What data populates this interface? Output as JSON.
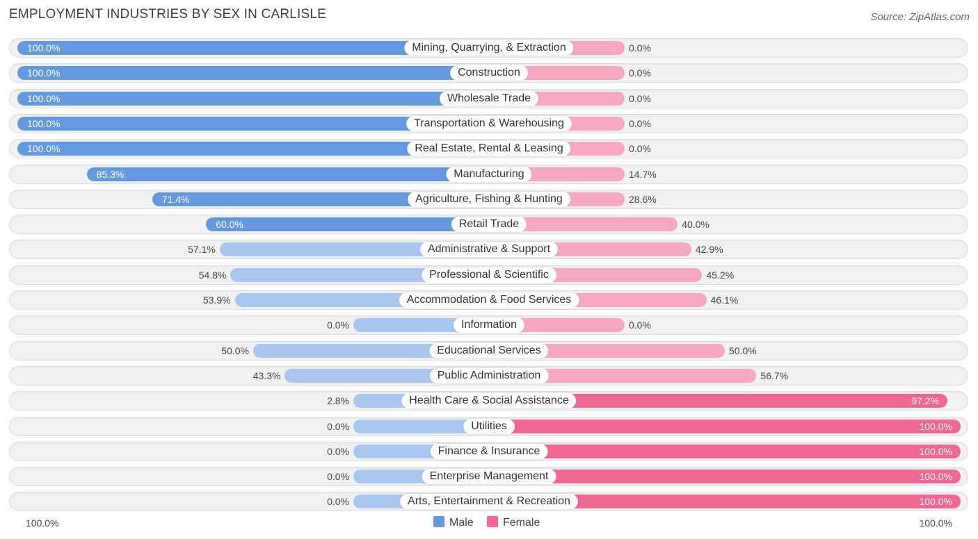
{
  "header": {
    "title": "EMPLOYMENT INDUSTRIES BY SEX IN CARLISLE",
    "source": "Source: ZipAtlas.com"
  },
  "colors": {
    "male_strong": "#6399de",
    "male_light": "#a9c7ee",
    "female_strong": "#f06892",
    "female_light": "#f7a8c1"
  },
  "chart_data": {
    "type": "bar",
    "orientation": "horizontal-diverging",
    "title": "EMPLOYMENT INDUSTRIES BY SEX IN CARLISLE",
    "categories": [
      "Mining, Quarrying, & Extraction",
      "Construction",
      "Wholesale Trade",
      "Transportation & Warehousing",
      "Real Estate, Rental & Leasing",
      "Manufacturing",
      "Agriculture, Fishing & Hunting",
      "Retail Trade",
      "Administrative & Support",
      "Professional & Scientific",
      "Accommodation & Food Services",
      "Information",
      "Educational Services",
      "Public Administration",
      "Health Care & Social Assistance",
      "Utilities",
      "Finance & Insurance",
      "Enterprise Management",
      "Arts, Entertainment & Recreation"
    ],
    "series": [
      {
        "name": "Male",
        "values": [
          100.0,
          100.0,
          100.0,
          100.0,
          100.0,
          85.3,
          71.4,
          60.0,
          57.1,
          54.8,
          53.9,
          0.0,
          50.0,
          43.3,
          2.8,
          0.0,
          0.0,
          0.0,
          0.0
        ],
        "labels": [
          "100.0%",
          "100.0%",
          "100.0%",
          "100.0%",
          "100.0%",
          "85.3%",
          "71.4%",
          "60.0%",
          "57.1%",
          "54.8%",
          "53.9%",
          "0.0%",
          "50.0%",
          "43.3%",
          "2.8%",
          "0.0%",
          "0.0%",
          "0.0%",
          "0.0%"
        ]
      },
      {
        "name": "Female",
        "values": [
          0.0,
          0.0,
          0.0,
          0.0,
          0.0,
          14.7,
          28.6,
          40.0,
          42.9,
          45.2,
          46.1,
          0.0,
          50.0,
          56.7,
          97.2,
          100.0,
          100.0,
          100.0,
          100.0
        ],
        "labels": [
          "0.0%",
          "0.0%",
          "0.0%",
          "0.0%",
          "0.0%",
          "14.7%",
          "28.6%",
          "40.0%",
          "42.9%",
          "45.2%",
          "46.1%",
          "0.0%",
          "50.0%",
          "56.7%",
          "97.2%",
          "100.0%",
          "100.0%",
          "100.0%",
          "100.0%"
        ]
      }
    ],
    "xlim": [
      0,
      100
    ],
    "axis_labels": {
      "left": "100.0%",
      "right": "100.0%"
    },
    "legend": [
      "Male",
      "Female"
    ]
  }
}
